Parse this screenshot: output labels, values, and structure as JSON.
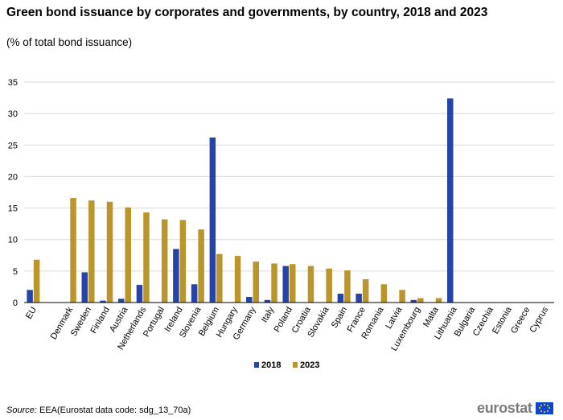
{
  "title": "Green bond issuance by corporates and governments, by country, 2018 and 2023",
  "subtitle": "(% of total bond issuance)",
  "source_label": "Source:",
  "source_text": " EEA(Eurostat data code: sdg_13_70a)",
  "logo_text": "eurostat",
  "colors": {
    "series_2018": "#2644a8",
    "series_2023": "#b9952b",
    "grid": "#d9d9d9",
    "axis": "#000000"
  },
  "chart_data": {
    "type": "bar",
    "title": "Green bond issuance by corporates and governments, by country, 2018 and 2023",
    "ylabel": "% of total bond issuance",
    "xlabel": "",
    "ylim": [
      0,
      35
    ],
    "yticks": [
      0,
      5,
      10,
      15,
      20,
      25,
      30,
      35
    ],
    "grid": true,
    "legend_position": "bottom-center",
    "categories": [
      "EU",
      "",
      "Denmark",
      "Sweden",
      "Finland",
      "Austria",
      "Netherlands",
      "Portugal",
      "Ireland",
      "Slovenia",
      "Belgium",
      "Hungary",
      "Germany",
      "Italy",
      "Poland",
      "Croatia",
      "Slovakia",
      "Spain",
      "France",
      "Romania",
      "Latvia",
      "Luxembourg",
      "Malta",
      "Lithuania",
      "Bulgaria",
      "Czechia",
      "Estonia",
      "Greece",
      "Cyprus"
    ],
    "series": [
      {
        "name": "2018",
        "values": [
          2.0,
          null,
          0.0,
          4.8,
          0.3,
          0.6,
          2.8,
          0.0,
          8.5,
          2.9,
          26.2,
          0.0,
          0.9,
          0.4,
          5.8,
          0.0,
          0.0,
          1.4,
          1.4,
          0.0,
          0.0,
          0.4,
          0.0,
          32.4,
          0.0,
          0.0,
          0.0,
          0.0,
          0.0
        ]
      },
      {
        "name": "2023",
        "values": [
          6.8,
          null,
          16.6,
          16.2,
          16.0,
          15.1,
          14.3,
          13.2,
          13.1,
          11.6,
          7.7,
          7.4,
          6.5,
          6.2,
          6.1,
          5.8,
          5.4,
          5.1,
          3.7,
          2.9,
          2.0,
          0.7,
          0.7,
          0.0,
          0.0,
          0.0,
          0.0,
          0.0,
          0.0
        ]
      }
    ]
  }
}
